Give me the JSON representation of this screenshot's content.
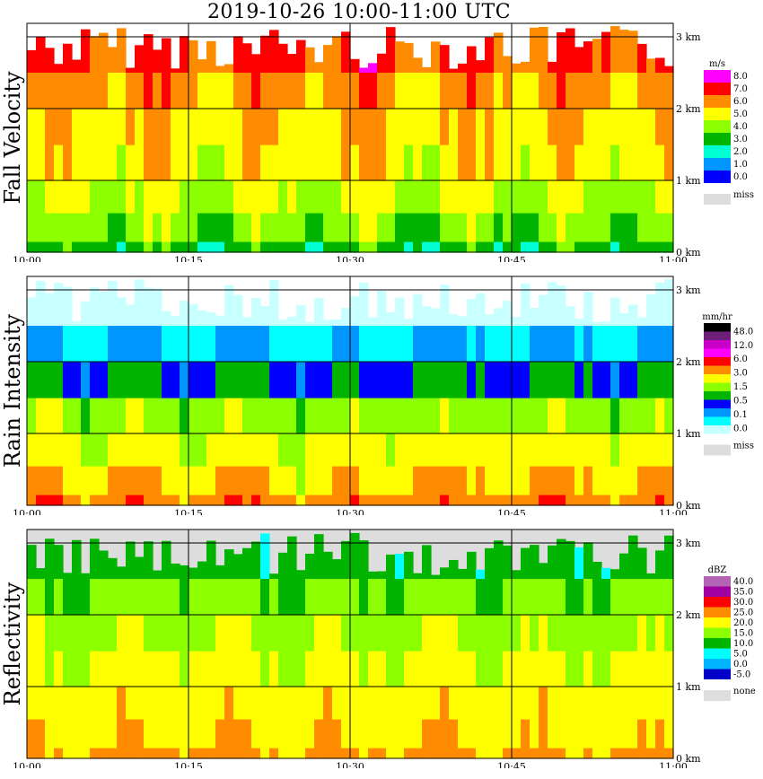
{
  "title": "2019-10-26   10:00-11:00 UTC",
  "x_ticks": [
    "10:00",
    "10:15",
    "10:30",
    "10:45",
    "11:00"
  ],
  "height_ticks": [
    "0 km",
    "1 km",
    "2 km",
    "3 km"
  ],
  "chart_data": [
    {
      "type": "heatmap",
      "ylabel": "Fall Velocity",
      "legend_unit": "m/s",
      "legend_labels": [
        "8.0",
        "7.0",
        "6.0",
        "5.0",
        "4.0",
        "3.0",
        "2.0",
        "1.0",
        "0.0"
      ],
      "legend_colors": [
        "#ff00ff",
        "#ff0000",
        "#ff8c00",
        "#ffff00",
        "#8cff00",
        "#00b400",
        "#00ffd2",
        "#0096ff",
        "#0000ff"
      ],
      "missing_label": "miss",
      "missing_color": "#dddddd",
      "x_range": [
        "10:00",
        "11:00"
      ],
      "y_range_km": [
        0,
        3.2
      ],
      "profile_values": [
        3.5,
        4.4,
        5.0,
        5.6,
        5.9,
        6.4,
        7.2
      ]
    },
    {
      "type": "heatmap",
      "ylabel": "Rain Intensity",
      "legend_unit": "mm/hr",
      "legend_labels": [
        "48.0",
        "12.0",
        "6.0",
        "3.0",
        "1.5",
        "0.5",
        "0.1",
        "0.0"
      ],
      "legend_colors": [
        "#000000",
        "#6e1e78",
        "#c800c8",
        "#ff00ff",
        "#ff0000",
        "#ff8c00",
        "#ffff00",
        "#8cff00",
        "#00b400",
        "#0000ff",
        "#0096ff",
        "#00ffff",
        "#c8ffff"
      ],
      "missing_label": "miss",
      "missing_color": "#dddddd",
      "x_range": [
        "10:00",
        "11:00"
      ],
      "y_range_km": [
        0,
        3.2
      ],
      "profile_values": [
        5.0,
        3.0,
        2.0,
        1.2,
        0.5,
        0.1,
        0.0
      ]
    },
    {
      "type": "heatmap",
      "ylabel": "Reflectivity",
      "legend_unit": "dBZ",
      "legend_labels": [
        "40.0",
        "35.0",
        "30.0",
        "25.0",
        "20.0",
        "15.0",
        "10.0",
        "5.0",
        "0.0",
        "-5.0"
      ],
      "legend_colors": [
        "#b464b4",
        "#a000a0",
        "#ff0000",
        "#ff8c00",
        "#ffff00",
        "#8cff00",
        "#00b400",
        "#00ffff",
        "#00b4ff",
        "#0000c8"
      ],
      "missing_label": "none",
      "missing_color": "#dddddd",
      "x_range": [
        "10:00",
        "11:00"
      ],
      "y_range_km": [
        0,
        3.2
      ],
      "profile_values": [
        31,
        29,
        28,
        26,
        24,
        21,
        17
      ]
    }
  ]
}
